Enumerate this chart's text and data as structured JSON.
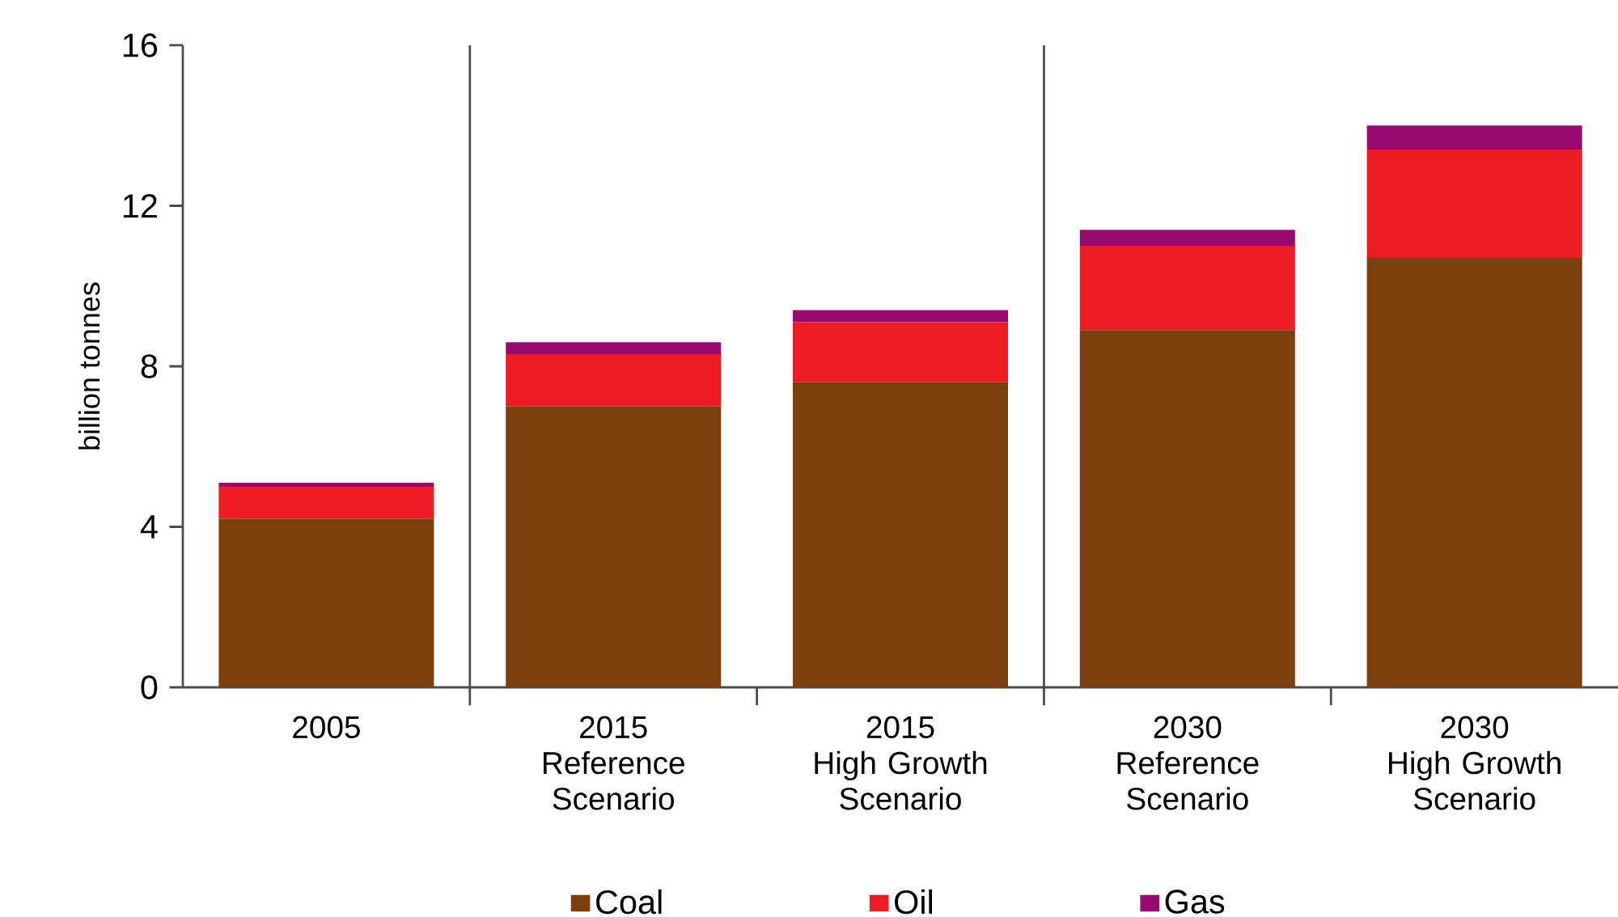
{
  "chart_data": {
    "type": "bar",
    "stacked": true,
    "ylabel": "billion tonnes",
    "categories": [
      "2005",
      "2015\nReference\nScenario",
      "2015\nHigh Growth\nScenario",
      "2030\nReference\nScenario",
      "2030\nHigh Growth\nScenario"
    ],
    "series": [
      {
        "name": "Coal",
        "color": "#7b3f0e",
        "values": [
          4.2,
          7.0,
          7.6,
          8.9,
          10.7
        ]
      },
      {
        "name": "Oil",
        "color": "#ed1c24",
        "values": [
          0.8,
          1.3,
          1.5,
          2.1,
          2.7
        ]
      },
      {
        "name": "Gas",
        "color": "#970a6f",
        "values": [
          0.1,
          0.3,
          0.3,
          0.4,
          0.6
        ]
      }
    ],
    "ylim": [
      0,
      16
    ],
    "yticks": [
      0,
      4,
      8,
      12,
      16
    ],
    "grid": false,
    "legend": "bottom"
  }
}
